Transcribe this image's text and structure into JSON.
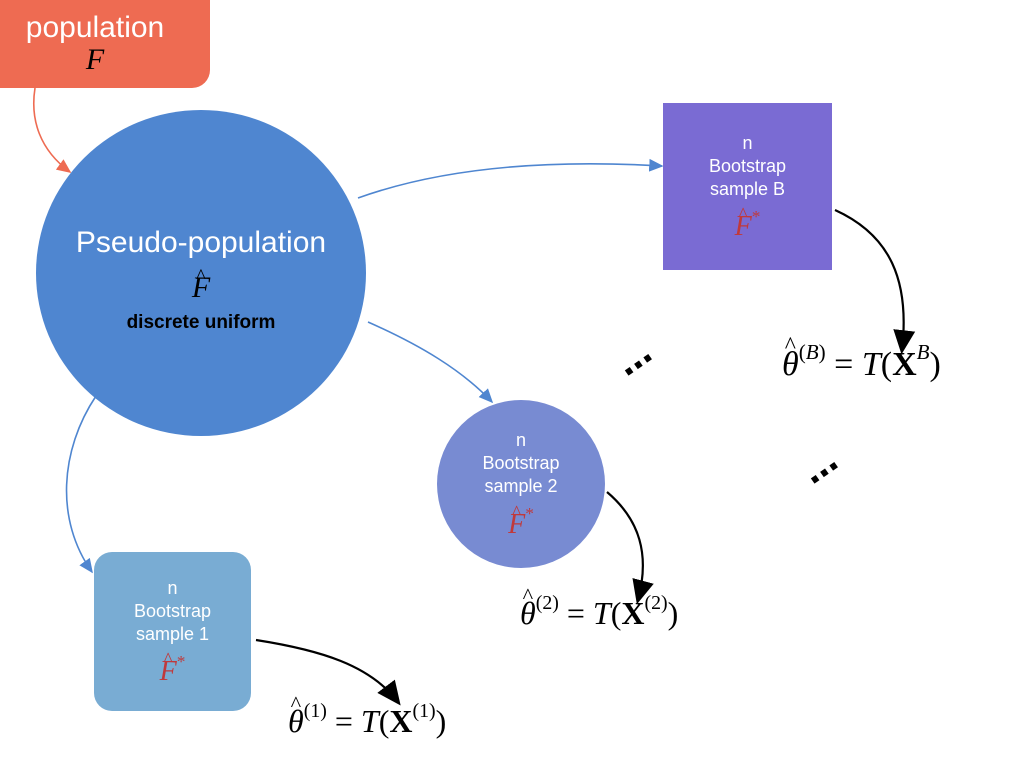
{
  "population": {
    "label": "population",
    "symbol": "F",
    "color": "#ee6b52"
  },
  "pseudo": {
    "label": "Pseudo-population",
    "symbol": "F",
    "sub": "discrete uniform",
    "color": "#4f86d0"
  },
  "samples": [
    {
      "n": "n",
      "line1": "Bootstrap",
      "line2": "sample B",
      "fstar": "F",
      "fstar_sup": "*",
      "color": "#7a6bd3"
    },
    {
      "n": "n",
      "line1": "Bootstrap",
      "line2": "sample 2",
      "fstar": "F",
      "fstar_sup": "*",
      "color": "#788bd2"
    },
    {
      "n": "n",
      "line1": "Bootstrap",
      "line2": "sample 1",
      "fstar": "F",
      "fstar_sup": "*",
      "color": "#79acd3"
    }
  ],
  "formulas": [
    {
      "theta": "θ",
      "sup": "B",
      "eq": "=",
      "T": "T",
      "X": "X",
      "xsup": "B"
    },
    {
      "theta": "θ",
      "sup": "2",
      "eq": "=",
      "T": "T",
      "X": "X",
      "xsup": "2"
    },
    {
      "theta": "θ",
      "sup": "1",
      "eq": "=",
      "T": "T",
      "X": "X",
      "xsup": "1"
    }
  ],
  "ellipsis": "⋯",
  "colors": {
    "edge_red": "#ee6b52",
    "edge_blue": "#4f86d0",
    "edge_black": "#000000",
    "fstar": "#c0393b"
  }
}
